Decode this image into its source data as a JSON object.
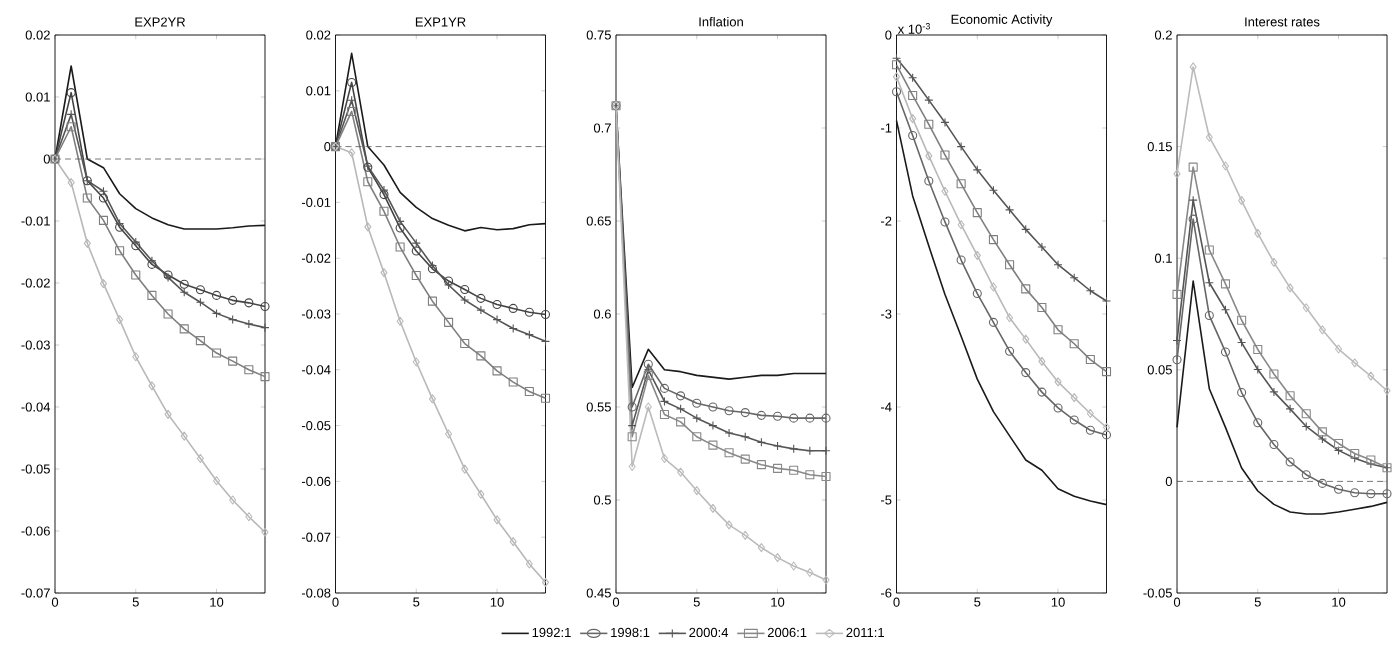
{
  "chart_data": [
    {
      "type": "line",
      "title": "EXP2YR",
      "x": [
        0,
        1,
        2,
        3,
        4,
        5,
        6,
        7,
        8,
        9,
        10,
        11,
        12,
        13
      ],
      "xlim": [
        0,
        13
      ],
      "xticks": [
        0,
        5,
        10
      ],
      "ylim": [
        -0.07,
        0.02
      ],
      "yticks": [
        -0.07,
        -0.06,
        -0.05,
        -0.04,
        -0.03,
        -0.02,
        -0.01,
        0,
        0.01,
        0.02
      ],
      "ref_lines": [
        {
          "axis": "y",
          "value": 0,
          "line_style": "dashed",
          "color": "#555555"
        }
      ],
      "series": [
        {
          "color": "#1a1a1a",
          "marker": "none",
          "values": [
            0,
            0.015,
            0,
            -0.0014,
            -0.0056,
            -0.008,
            -0.0095,
            -0.0106,
            -0.0113,
            -0.0113,
            -0.0113,
            -0.0111,
            -0.0108,
            -0.0107
          ]
        },
        {
          "color": "#444444",
          "marker": "circle",
          "values": [
            0,
            0.0107,
            -0.0035,
            -0.0063,
            -0.011,
            -0.014,
            -0.017,
            -0.0187,
            -0.0202,
            -0.0211,
            -0.022,
            -0.0228,
            -0.0232,
            -0.0238
          ]
        },
        {
          "color": "#555555",
          "marker": "cross",
          "values": [
            0,
            0.0072,
            -0.0035,
            -0.0052,
            -0.0104,
            -0.0134,
            -0.0164,
            -0.0191,
            -0.0215,
            -0.0231,
            -0.0249,
            -0.0259,
            -0.0266,
            -0.0272
          ]
        },
        {
          "color": "#7f7f7f",
          "marker": "square",
          "values": [
            0,
            0.0052,
            -0.0063,
            -0.0099,
            -0.0148,
            -0.0187,
            -0.022,
            -0.025,
            -0.0274,
            -0.0293,
            -0.0313,
            -0.0326,
            -0.034,
            -0.0351
          ]
        },
        {
          "color": "#b8b8b8",
          "marker": "diamond",
          "values": [
            0,
            -0.0038,
            -0.0136,
            -0.0201,
            -0.0259,
            -0.0319,
            -0.0366,
            -0.0412,
            -0.0447,
            -0.0483,
            -0.0519,
            -0.055,
            -0.0577,
            -0.0602
          ]
        }
      ]
    },
    {
      "type": "line",
      "title": "EXP1YR",
      "x": [
        0,
        1,
        2,
        3,
        4,
        5,
        6,
        7,
        8,
        9,
        10,
        11,
        12,
        13
      ],
      "xlim": [
        0,
        13
      ],
      "xticks": [
        0,
        5,
        10
      ],
      "ylim": [
        -0.08,
        0.02
      ],
      "yticks": [
        -0.08,
        -0.07,
        -0.06,
        -0.05,
        -0.04,
        -0.03,
        -0.02,
        -0.01,
        0,
        0.01,
        0.02
      ],
      "ref_lines": [
        {
          "axis": "y",
          "value": 0,
          "line_style": "dashed",
          "color": "#555555"
        }
      ],
      "series": [
        {
          "color": "#1a1a1a",
          "marker": "none",
          "values": [
            0,
            0.0167,
            0,
            -0.0033,
            -0.0082,
            -0.0109,
            -0.0129,
            -0.0141,
            -0.0151,
            -0.0145,
            -0.0149,
            -0.0147,
            -0.014,
            -0.0138
          ]
        },
        {
          "color": "#444444",
          "marker": "circle",
          "values": [
            0,
            0.0115,
            -0.0037,
            -0.0086,
            -0.0146,
            -0.0187,
            -0.0219,
            -0.0241,
            -0.0256,
            -0.0272,
            -0.0283,
            -0.029,
            -0.0297,
            -0.0301
          ]
        },
        {
          "color": "#555555",
          "marker": "cross",
          "values": [
            0,
            0.0083,
            -0.0035,
            -0.0078,
            -0.0134,
            -0.0173,
            -0.0213,
            -0.0248,
            -0.0275,
            -0.0293,
            -0.031,
            -0.0326,
            -0.0337,
            -0.0349
          ]
        },
        {
          "color": "#7f7f7f",
          "marker": "square",
          "values": [
            0,
            0.0063,
            -0.0063,
            -0.0116,
            -0.018,
            -0.0231,
            -0.0277,
            -0.0315,
            -0.0353,
            -0.0375,
            -0.0402,
            -0.0422,
            -0.0439,
            -0.0451
          ]
        },
        {
          "color": "#b8b8b8",
          "marker": "diamond",
          "values": [
            0,
            -0.0011,
            -0.0144,
            -0.0226,
            -0.0313,
            -0.0386,
            -0.0452,
            -0.0515,
            -0.0578,
            -0.0623,
            -0.0669,
            -0.0708,
            -0.0748,
            -0.0781
          ]
        }
      ]
    },
    {
      "type": "line",
      "title": "Inflation",
      "x": [
        0,
        1,
        2,
        3,
        4,
        5,
        6,
        7,
        8,
        9,
        10,
        11,
        12,
        13
      ],
      "xlim": [
        0,
        13
      ],
      "xticks": [
        0,
        5,
        10
      ],
      "ylim": [
        0.45,
        0.75
      ],
      "yticks": [
        0.45,
        0.5,
        0.55,
        0.6,
        0.65,
        0.7,
        0.75
      ],
      "legend": "bottom",
      "series": [
        {
          "name": "1992:1",
          "color": "#1a1a1a",
          "marker": "none",
          "values": [
            0.712,
            0.5605,
            0.581,
            0.57,
            0.569,
            0.567,
            0.566,
            0.565,
            0.566,
            0.567,
            0.567,
            0.568,
            0.568,
            0.568
          ]
        },
        {
          "name": "1998:1",
          "color": "#666666",
          "marker": "circle",
          "values": [
            0.712,
            0.55,
            0.573,
            0.56,
            0.556,
            0.552,
            0.55,
            0.548,
            0.547,
            0.5455,
            0.545,
            0.544,
            0.544,
            0.544
          ]
        },
        {
          "name": "2000:4",
          "color": "#555555",
          "marker": "cross",
          "values": [
            0.712,
            0.54,
            0.57,
            0.553,
            0.549,
            0.544,
            0.54,
            0.536,
            0.534,
            0.531,
            0.529,
            0.5275,
            0.5265,
            0.5265
          ]
        },
        {
          "name": "2006:1",
          "color": "#888888",
          "marker": "square",
          "values": [
            0.712,
            0.534,
            0.567,
            0.546,
            0.542,
            0.534,
            0.5295,
            0.5254,
            0.522,
            0.519,
            0.517,
            0.516,
            0.5136,
            0.5126
          ]
        },
        {
          "name": "2011:1",
          "color": "#bbbbbb",
          "marker": "diamond",
          "values": [
            0.712,
            0.518,
            0.55,
            0.5223,
            0.515,
            0.505,
            0.4955,
            0.4866,
            0.481,
            0.4744,
            0.469,
            0.4645,
            0.461,
            0.457
          ]
        }
      ]
    },
    {
      "type": "line",
      "title": "Economic Activity",
      "annotations": [
        "x 10$^{-3}$"
      ],
      "x": [
        0,
        1,
        2,
        3,
        4,
        5,
        6,
        7,
        8,
        9,
        10,
        11,
        12,
        13
      ],
      "xlim": [
        0,
        13
      ],
      "xticks": [
        0,
        5,
        10
      ],
      "ylim": [
        -6,
        0
      ],
      "yticks": [
        -6,
        -5,
        -4,
        -3,
        -2,
        -1,
        0
      ],
      "series": [
        {
          "color": "#1a1a1a",
          "marker": "none",
          "values": [
            -0.92,
            -1.73,
            -2.27,
            -2.79,
            -3.24,
            -3.7,
            -4.05,
            -4.31,
            -4.57,
            -4.68,
            -4.88,
            -4.96,
            -5.01,
            -5.05
          ]
        },
        {
          "color": "#666666",
          "marker": "circle",
          "values": [
            -0.61,
            -1.08,
            -1.57,
            -2.01,
            -2.42,
            -2.78,
            -3.09,
            -3.4,
            -3.63,
            -3.84,
            -4.01,
            -4.14,
            -4.25,
            -4.3
          ]
        },
        {
          "color": "#555555",
          "marker": "cross",
          "values": [
            -0.25,
            -0.46,
            -0.7,
            -0.94,
            -1.2,
            -1.45,
            -1.67,
            -1.88,
            -2.09,
            -2.28,
            -2.47,
            -2.61,
            -2.75,
            -2.86
          ]
        },
        {
          "color": "#7f7f7f",
          "marker": "square",
          "values": [
            -0.32,
            -0.65,
            -0.96,
            -1.29,
            -1.6,
            -1.91,
            -2.2,
            -2.47,
            -2.73,
            -2.93,
            -3.17,
            -3.32,
            -3.49,
            -3.62
          ]
        },
        {
          "color": "#b8b8b8",
          "marker": "diamond",
          "values": [
            -0.45,
            -0.9,
            -1.3,
            -1.68,
            -2.04,
            -2.37,
            -2.71,
            -3.04,
            -3.27,
            -3.51,
            -3.73,
            -3.9,
            -4.07,
            -4.22
          ]
        }
      ]
    },
    {
      "type": "line",
      "title": "Interest rates",
      "x": [
        0,
        1,
        2,
        3,
        4,
        5,
        6,
        7,
        8,
        9,
        10,
        11,
        12,
        13
      ],
      "xlim": [
        0,
        13
      ],
      "xticks": [
        0,
        5,
        10
      ],
      "ylim": [
        -0.05,
        0.2
      ],
      "yticks": [
        -0.05,
        0,
        0.05,
        0.1,
        0.15,
        0.2
      ],
      "ref_lines": [
        {
          "axis": "y",
          "value": 0,
          "line_style": "dashed",
          "color": "#555555"
        }
      ],
      "series": [
        {
          "color": "#1a1a1a",
          "marker": "none",
          "values": [
            0.0242,
            0.0898,
            0.0415,
            0.0242,
            0.006,
            -0.0043,
            -0.0103,
            -0.0137,
            -0.0146,
            -0.0146,
            -0.0137,
            -0.0125,
            -0.0112,
            -0.0094
          ]
        },
        {
          "color": "#666666",
          "marker": "circle",
          "values": [
            0.0545,
            0.1175,
            0.0743,
            0.058,
            0.0398,
            0.0263,
            0.0165,
            0.0087,
            0.003,
            -0.0009,
            -0.0035,
            -0.0051,
            -0.0055,
            -0.0055
          ]
        },
        {
          "color": "#555555",
          "marker": "cross",
          "values": [
            0.0631,
            0.126,
            0.089,
            0.0769,
            0.0622,
            0.0501,
            0.0401,
            0.0325,
            0.0246,
            0.019,
            0.0139,
            0.0104,
            0.0078,
            0.0061
          ]
        },
        {
          "color": "#888888",
          "marker": "square",
          "values": [
            0.0838,
            0.1408,
            0.1037,
            0.0885,
            0.0722,
            0.0591,
            0.0481,
            0.0384,
            0.0303,
            0.0222,
            0.017,
            0.0125,
            0.0096,
            0.0061
          ]
        },
        {
          "color": "#bbbbbb",
          "marker": "diamond",
          "values": [
            0.1378,
            0.1857,
            0.1542,
            0.1413,
            0.1258,
            0.1111,
            0.0981,
            0.0867,
            0.0778,
            0.0679,
            0.0593,
            0.0531,
            0.0472,
            0.0406
          ]
        }
      ]
    }
  ]
}
